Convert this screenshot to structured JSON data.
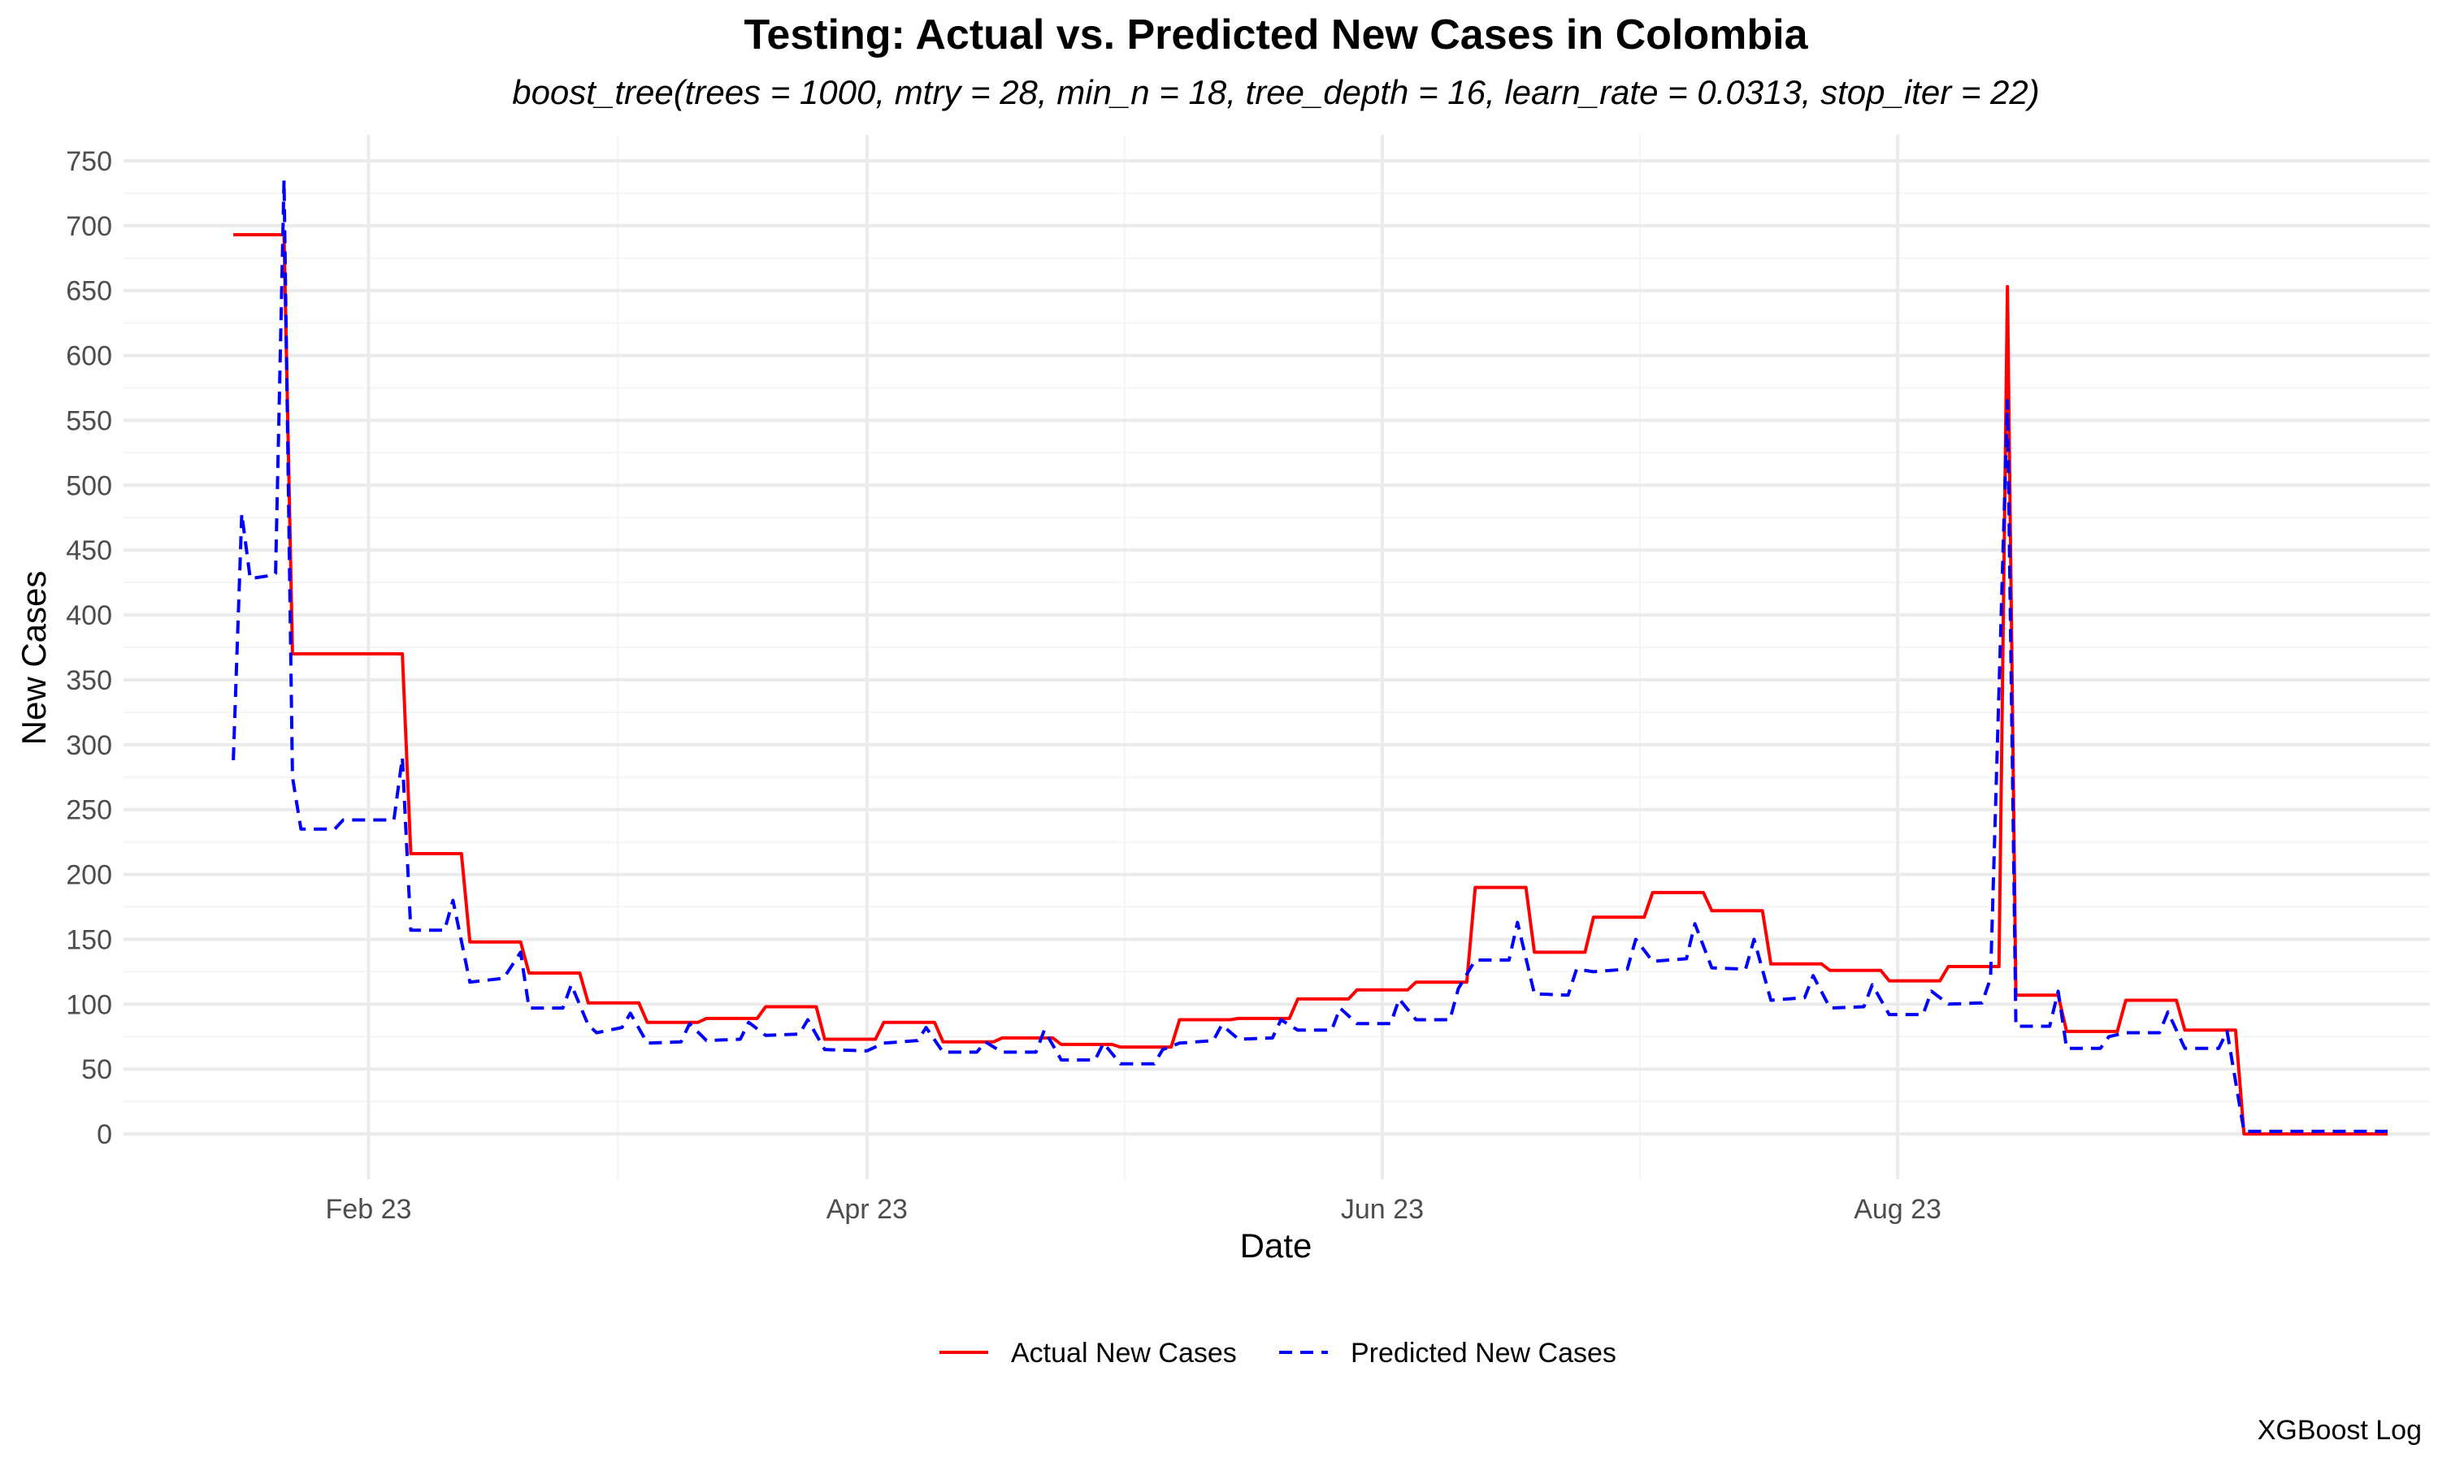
{
  "chart_data": {
    "type": "line",
    "title": "Testing: Actual vs. Predicted New Cases in Colombia",
    "subtitle": "boost_tree(trees = 1000, mtry = 28, min_n = 18, tree_depth = 16, learn_rate = 0.0313, stop_iter = 22)",
    "xlabel": "Date",
    "ylabel": "New Cases",
    "caption": "XGBoost Log",
    "x_scale": "date",
    "xlim": [
      "2023-01-03",
      "2023-10-03"
    ],
    "ylim": [
      -35,
      770
    ],
    "y_ticks": [
      0,
      50,
      100,
      150,
      200,
      250,
      300,
      350,
      400,
      450,
      500,
      550,
      600,
      650,
      700,
      750
    ],
    "x_ticks": [
      {
        "date": "2023-02-01",
        "label": "Feb 23"
      },
      {
        "date": "2023-04-01",
        "label": "Apr 23"
      },
      {
        "date": "2023-06-01",
        "label": "Jun 23"
      },
      {
        "date": "2023-08-01",
        "label": "Aug 23"
      }
    ],
    "grid": true,
    "legend_position": "bottom",
    "series": [
      {
        "name": "Actual New Cases",
        "color": "#ff0000",
        "dash": "solid",
        "points": [
          [
            "2023-01-16",
            693
          ],
          [
            "2023-01-22",
            693
          ],
          [
            "2023-01-23",
            370
          ],
          [
            "2023-02-05",
            370
          ],
          [
            "2023-02-06",
            216
          ],
          [
            "2023-02-12",
            216
          ],
          [
            "2023-02-13",
            148
          ],
          [
            "2023-02-19",
            148
          ],
          [
            "2023-02-20",
            124
          ],
          [
            "2023-02-26",
            124
          ],
          [
            "2023-02-27",
            101
          ],
          [
            "2023-03-05",
            101
          ],
          [
            "2023-03-06",
            86
          ],
          [
            "2023-03-12",
            86
          ],
          [
            "2023-03-13",
            89
          ],
          [
            "2023-03-19",
            89
          ],
          [
            "2023-03-20",
            98
          ],
          [
            "2023-03-26",
            98
          ],
          [
            "2023-03-27",
            73
          ],
          [
            "2023-04-02",
            73
          ],
          [
            "2023-04-03",
            86
          ],
          [
            "2023-04-09",
            86
          ],
          [
            "2023-04-10",
            71
          ],
          [
            "2023-04-16",
            71
          ],
          [
            "2023-04-17",
            74
          ],
          [
            "2023-04-23",
            74
          ],
          [
            "2023-04-24",
            69
          ],
          [
            "2023-04-30",
            69
          ],
          [
            "2023-05-01",
            67
          ],
          [
            "2023-05-07",
            67
          ],
          [
            "2023-05-08",
            88
          ],
          [
            "2023-05-14",
            88
          ],
          [
            "2023-05-15",
            89
          ],
          [
            "2023-05-21",
            89
          ],
          [
            "2023-05-22",
            104
          ],
          [
            "2023-05-28",
            104
          ],
          [
            "2023-05-29",
            111
          ],
          [
            "2023-06-04",
            111
          ],
          [
            "2023-06-05",
            117
          ],
          [
            "2023-06-11",
            117
          ],
          [
            "2023-06-12",
            190
          ],
          [
            "2023-06-18",
            190
          ],
          [
            "2023-06-19",
            140
          ],
          [
            "2023-06-25",
            140
          ],
          [
            "2023-06-26",
            167
          ],
          [
            "2023-07-02",
            167
          ],
          [
            "2023-07-03",
            186
          ],
          [
            "2023-07-09",
            186
          ],
          [
            "2023-07-10",
            172
          ],
          [
            "2023-07-16",
            172
          ],
          [
            "2023-07-17",
            131
          ],
          [
            "2023-07-23",
            131
          ],
          [
            "2023-07-24",
            126
          ],
          [
            "2023-07-30",
            126
          ],
          [
            "2023-07-31",
            118
          ],
          [
            "2023-08-06",
            118
          ],
          [
            "2023-08-07",
            129
          ],
          [
            "2023-08-13",
            129
          ],
          [
            "2023-08-14",
            653
          ],
          [
            "2023-08-15",
            107
          ],
          [
            "2023-08-20",
            107
          ],
          [
            "2023-08-21",
            79
          ],
          [
            "2023-08-27",
            79
          ],
          [
            "2023-08-28",
            103
          ],
          [
            "2023-09-03",
            103
          ],
          [
            "2023-09-04",
            80
          ],
          [
            "2023-09-10",
            80
          ],
          [
            "2023-09-11",
            0
          ],
          [
            "2023-09-28",
            0
          ]
        ]
      },
      {
        "name": "Predicted New Cases",
        "color": "#0000ff",
        "dash": "dashed",
        "points": [
          [
            "2023-01-16",
            288
          ],
          [
            "2023-01-17",
            478
          ],
          [
            "2023-01-18",
            428
          ],
          [
            "2023-01-20",
            430
          ],
          [
            "2023-01-21",
            432
          ],
          [
            "2023-01-22",
            735
          ],
          [
            "2023-01-23",
            275
          ],
          [
            "2023-01-24",
            235
          ],
          [
            "2023-01-28",
            235
          ],
          [
            "2023-01-29",
            242
          ],
          [
            "2023-02-04",
            242
          ],
          [
            "2023-02-05",
            290
          ],
          [
            "2023-02-06",
            157
          ],
          [
            "2023-02-10",
            157
          ],
          [
            "2023-02-11",
            180
          ],
          [
            "2023-02-13",
            117
          ],
          [
            "2023-02-17",
            120
          ],
          [
            "2023-02-19",
            140
          ],
          [
            "2023-02-20",
            97
          ],
          [
            "2023-02-24",
            97
          ],
          [
            "2023-02-25",
            115
          ],
          [
            "2023-02-27",
            84
          ],
          [
            "2023-02-28",
            78
          ],
          [
            "2023-03-03",
            82
          ],
          [
            "2023-03-04",
            93
          ],
          [
            "2023-03-06",
            70
          ],
          [
            "2023-03-10",
            71
          ],
          [
            "2023-03-11",
            85
          ],
          [
            "2023-03-13",
            72
          ],
          [
            "2023-03-17",
            73
          ],
          [
            "2023-03-18",
            86
          ],
          [
            "2023-03-20",
            76
          ],
          [
            "2023-03-24",
            77
          ],
          [
            "2023-03-25",
            88
          ],
          [
            "2023-03-27",
            65
          ],
          [
            "2023-04-01",
            64
          ],
          [
            "2023-04-03",
            70
          ],
          [
            "2023-04-07",
            72
          ],
          [
            "2023-04-08",
            82
          ],
          [
            "2023-04-10",
            63
          ],
          [
            "2023-04-14",
            63
          ],
          [
            "2023-04-15",
            71
          ],
          [
            "2023-04-17",
            63
          ],
          [
            "2023-04-21",
            63
          ],
          [
            "2023-04-22",
            80
          ],
          [
            "2023-04-24",
            57
          ],
          [
            "2023-04-28",
            57
          ],
          [
            "2023-04-29",
            70
          ],
          [
            "2023-05-01",
            54
          ],
          [
            "2023-05-05",
            54
          ],
          [
            "2023-05-06",
            65
          ],
          [
            "2023-05-08",
            70
          ],
          [
            "2023-05-12",
            72
          ],
          [
            "2023-05-13",
            84
          ],
          [
            "2023-05-15",
            73
          ],
          [
            "2023-05-19",
            74
          ],
          [
            "2023-05-20",
            88
          ],
          [
            "2023-05-22",
            80
          ],
          [
            "2023-05-26",
            80
          ],
          [
            "2023-05-27",
            97
          ],
          [
            "2023-05-29",
            85
          ],
          [
            "2023-06-02",
            85
          ],
          [
            "2023-06-03",
            104
          ],
          [
            "2023-06-05",
            88
          ],
          [
            "2023-06-09",
            88
          ],
          [
            "2023-06-10",
            112
          ],
          [
            "2023-06-12",
            134
          ],
          [
            "2023-06-16",
            134
          ],
          [
            "2023-06-17",
            163
          ],
          [
            "2023-06-19",
            108
          ],
          [
            "2023-06-23",
            107
          ],
          [
            "2023-06-24",
            127
          ],
          [
            "2023-06-26",
            125
          ],
          [
            "2023-06-30",
            127
          ],
          [
            "2023-07-01",
            150
          ],
          [
            "2023-07-03",
            133
          ],
          [
            "2023-07-07",
            135
          ],
          [
            "2023-07-08",
            162
          ],
          [
            "2023-07-10",
            128
          ],
          [
            "2023-07-14",
            127
          ],
          [
            "2023-07-15",
            150
          ],
          [
            "2023-07-17",
            103
          ],
          [
            "2023-07-21",
            105
          ],
          [
            "2023-07-22",
            122
          ],
          [
            "2023-07-24",
            97
          ],
          [
            "2023-07-28",
            98
          ],
          [
            "2023-07-29",
            115
          ],
          [
            "2023-07-31",
            92
          ],
          [
            "2023-08-04",
            92
          ],
          [
            "2023-08-05",
            110
          ],
          [
            "2023-08-07",
            100
          ],
          [
            "2023-08-11",
            101
          ],
          [
            "2023-08-12",
            120
          ],
          [
            "2023-08-14",
            565
          ],
          [
            "2023-08-15",
            83
          ],
          [
            "2023-08-19",
            83
          ],
          [
            "2023-08-20",
            110
          ],
          [
            "2023-08-21",
            66
          ],
          [
            "2023-08-25",
            66
          ],
          [
            "2023-08-26",
            75
          ],
          [
            "2023-08-28",
            78
          ],
          [
            "2023-09-01",
            78
          ],
          [
            "2023-09-02",
            94
          ],
          [
            "2023-09-04",
            66
          ],
          [
            "2023-09-08",
            66
          ],
          [
            "2023-09-09",
            79
          ],
          [
            "2023-09-11",
            2
          ],
          [
            "2023-09-28",
            2
          ]
        ]
      }
    ]
  }
}
